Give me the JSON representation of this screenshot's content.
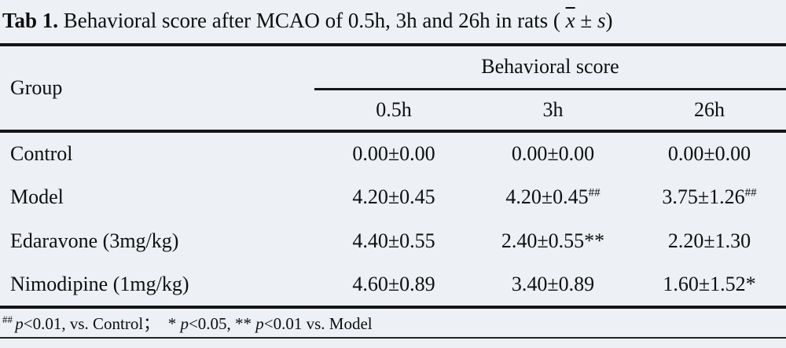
{
  "title": {
    "label": "Tab 1.",
    "text": " Behavioral score after MCAO of 0.5h, 3h and 26h in rats ( ",
    "xbar": "x",
    "plusminus": " ± ",
    "s": "s",
    "close": ")"
  },
  "table": {
    "group_header": "Group",
    "span_header": "Behavioral score",
    "time_headers": [
      "0.5h",
      "3h",
      "26h"
    ],
    "rows": [
      {
        "group": "Control",
        "values": [
          {
            "text": "0.00±0.00",
            "sup": ""
          },
          {
            "text": "0.00±0.00",
            "sup": ""
          },
          {
            "text": "0.00±0.00",
            "sup": ""
          }
        ]
      },
      {
        "group": "Model",
        "values": [
          {
            "text": "4.20±0.45",
            "sup": ""
          },
          {
            "text": "4.20±0.45",
            "sup": "##"
          },
          {
            "text": "3.75±1.26",
            "sup": "##"
          }
        ]
      },
      {
        "group": "Edaravone (3mg/kg)",
        "values": [
          {
            "text": "4.40±0.55",
            "sup": ""
          },
          {
            "text": "2.40±0.55**",
            "sup": ""
          },
          {
            "text": "2.20±1.30",
            "sup": ""
          }
        ]
      },
      {
        "group": "Nimodipine (1mg/kg)",
        "values": [
          {
            "text": "4.60±0.89",
            "sup": ""
          },
          {
            "text": "3.40±0.89",
            "sup": ""
          },
          {
            "text": "1.60±1.52*",
            "sup": ""
          }
        ]
      }
    ]
  },
  "footnote": {
    "sup": "## ",
    "p1": "p",
    "t1": "<0.01, vs. Control； ",
    "star1": "* ",
    "p2": "p",
    "t2": "<0.05, ** ",
    "p3": "p",
    "t3": "<0.01 vs. Model"
  },
  "colors": {
    "background": "#edf0f4",
    "rule": "#161616",
    "text": "#0e0e0e"
  }
}
